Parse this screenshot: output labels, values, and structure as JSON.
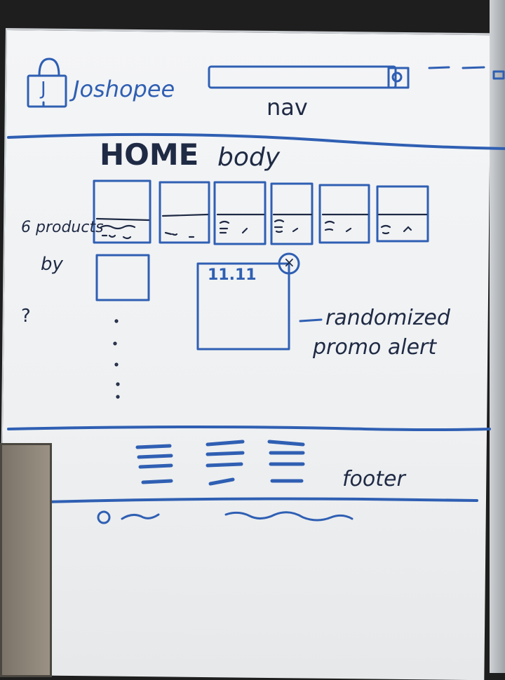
{
  "colors": {
    "ink_blue": "#2f5fb3",
    "ink_dark": "#1f2a44",
    "board": "#f1f2f4"
  },
  "nav": {
    "logo_letter": "J",
    "brand": "Joshopee",
    "label": "nav",
    "search_icon": "search-icon"
  },
  "body": {
    "home_label": "HOME",
    "body_label": "body",
    "products_note": "6 products",
    "by_note": "by",
    "question_mark": "?",
    "promo_text": "11.11",
    "promo_close_icon": "close-icon",
    "promo_note_line1": "randomized",
    "promo_note_line2": "promo alert"
  },
  "footer": {
    "label": "footer",
    "info_icon": "circle-icon"
  }
}
